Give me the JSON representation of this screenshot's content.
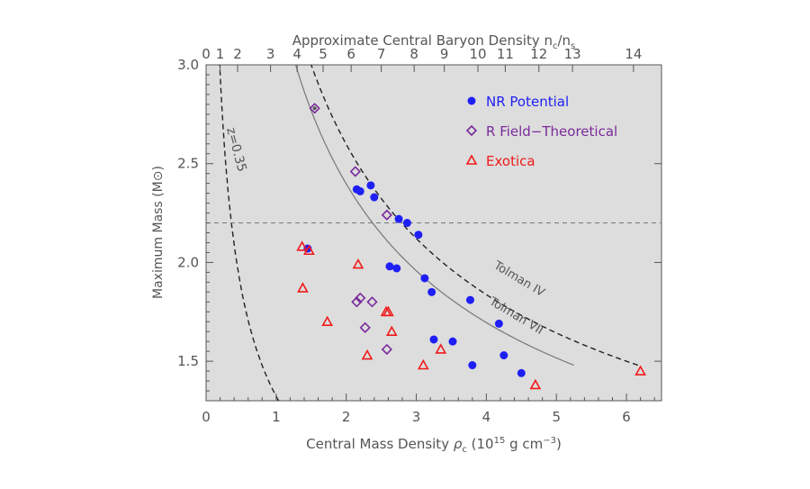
{
  "chart_data": {
    "type": "scatter",
    "xlabel_prefix": "Central Mass Density ",
    "xlabel_rho": "ρ",
    "xlabel_rho_sub": "c",
    "xlabel_paren_open": " (10",
    "xlabel_exp": "15",
    "xlabel_units": " g cm",
    "xlabel_units_exp": "−3",
    "xlabel_paren_close": ")",
    "ylabel": "Maximum Mass (M⊙)",
    "top_xlabel_main": "Approximate Central Baryon Density n",
    "top_xlabel_sub1": "c",
    "top_xlabel_slash": "/n",
    "top_xlabel_sub2": "s",
    "xlim": [
      0,
      6.5
    ],
    "ylim": [
      1.3,
      3.0
    ],
    "x_ticks": [
      "0",
      "1",
      "2",
      "3",
      "4",
      "5",
      "6"
    ],
    "y_ticks": [
      "1.5",
      "2.0",
      "2.5",
      "3.0"
    ],
    "top_ticks": [
      {
        "label": "0",
        "x": 0
      },
      {
        "label": "1",
        "x": 0.2
      },
      {
        "label": "2",
        "x": 0.45
      },
      {
        "label": "3",
        "x": 0.92
      },
      {
        "label": "4",
        "x": 1.3
      },
      {
        "label": "5",
        "x": 1.67
      },
      {
        "label": "6",
        "x": 2.07
      },
      {
        "label": "7",
        "x": 2.5
      },
      {
        "label": "8",
        "x": 2.97
      },
      {
        "label": "9",
        "x": 3.4
      },
      {
        "label": "10",
        "x": 3.88
      },
      {
        "label": "11",
        "x": 4.27
      },
      {
        "label": "12",
        "x": 4.75
      },
      {
        "label": "13",
        "x": 5.23
      },
      {
        "label": "14",
        "x": 6.1
      }
    ],
    "reference_line_y": 2.2,
    "curve_labels": {
      "z": "z=0.35",
      "tolman4": "Tolman IV",
      "tolman7": "Tolman VII"
    },
    "legend_position": "top-right",
    "series": [
      {
        "name": "NR Potential",
        "marker": "circle",
        "color": "#1f1ff5",
        "points": [
          [
            1.45,
            2.07
          ],
          [
            2.15,
            2.37
          ],
          [
            2.2,
            2.36
          ],
          [
            2.35,
            2.39
          ],
          [
            2.4,
            2.33
          ],
          [
            2.75,
            2.22
          ],
          [
            2.87,
            2.2
          ],
          [
            3.03,
            2.14
          ],
          [
            2.62,
            1.98
          ],
          [
            2.72,
            1.97
          ],
          [
            3.12,
            1.92
          ],
          [
            3.22,
            1.85
          ],
          [
            3.77,
            1.81
          ],
          [
            3.25,
            1.61
          ],
          [
            3.52,
            1.6
          ],
          [
            4.18,
            1.69
          ],
          [
            4.25,
            1.53
          ],
          [
            3.8,
            1.48
          ],
          [
            4.5,
            1.44
          ]
        ]
      },
      {
        "name": "R Field−Theoretical",
        "marker": "diamond",
        "color": "#7a2a9a",
        "points": [
          [
            1.55,
            2.78
          ],
          [
            2.13,
            2.46
          ],
          [
            2.58,
            2.24
          ],
          [
            2.2,
            1.82
          ],
          [
            2.15,
            1.8
          ],
          [
            2.37,
            1.8
          ],
          [
            2.27,
            1.67
          ],
          [
            2.58,
            1.56
          ]
        ]
      },
      {
        "name": "Exotica",
        "marker": "triangle",
        "color": "#f01a1a",
        "points": [
          [
            1.37,
            2.08
          ],
          [
            1.47,
            2.06
          ],
          [
            2.17,
            1.99
          ],
          [
            1.38,
            1.87
          ],
          [
            1.73,
            1.7
          ],
          [
            2.57,
            1.75
          ],
          [
            2.6,
            1.75
          ],
          [
            2.65,
            1.65
          ],
          [
            2.3,
            1.53
          ],
          [
            3.1,
            1.48
          ],
          [
            3.35,
            1.56
          ],
          [
            4.7,
            1.38
          ],
          [
            6.2,
            1.45
          ]
        ]
      }
    ]
  }
}
